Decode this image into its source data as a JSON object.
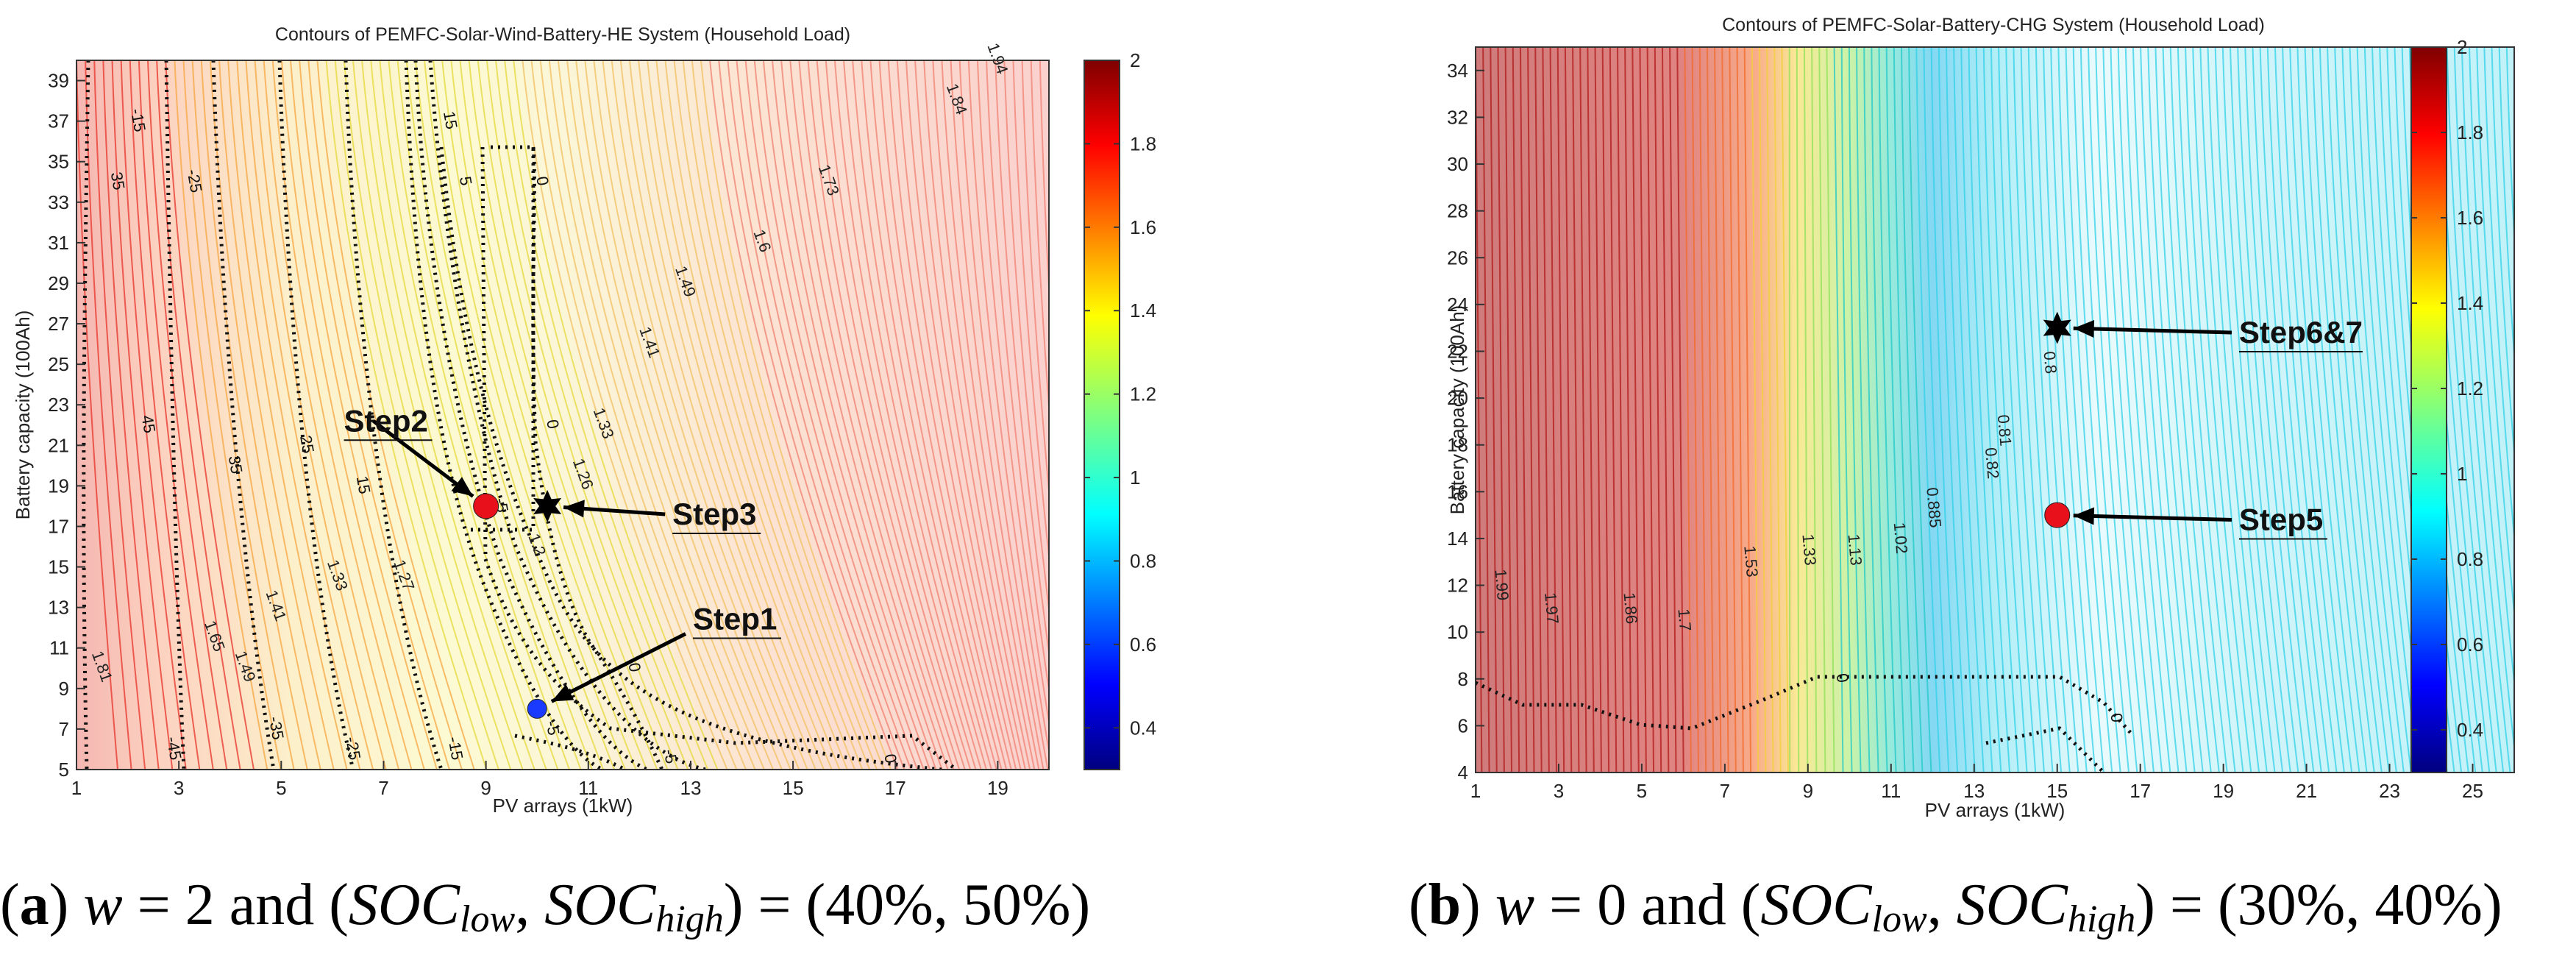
{
  "chart_data": [
    {
      "type": "contour",
      "title": "Contours of PEMFC-Solar-Wind-Battery-HE System (Household Load)",
      "xlabel": "PV arrays (1kW)",
      "ylabel": "Battery capacity (100Ah)",
      "xlim": [
        1,
        20
      ],
      "ylim": [
        5,
        40
      ],
      "xticks": [
        1,
        3,
        5,
        7,
        9,
        11,
        13,
        15,
        17,
        19
      ],
      "yticks": [
        5,
        7,
        9,
        11,
        13,
        15,
        17,
        19,
        21,
        23,
        25,
        27,
        29,
        31,
        33,
        35,
        37,
        39
      ],
      "colorbar": {
        "min": 0.3,
        "max": 2,
        "ticks": [
          0.4,
          0.6,
          0.8,
          1,
          1.2,
          1.4,
          1.6,
          1.8,
          2
        ]
      },
      "colored_contour_labels": [
        {
          "text": "1.81",
          "x": 1.4,
          "y": 10
        },
        {
          "text": "1.65",
          "x": 3.6,
          "y": 11.5
        },
        {
          "text": "1.49",
          "x": 4.2,
          "y": 10
        },
        {
          "text": "1.41",
          "x": 4.8,
          "y": 13
        },
        {
          "text": "1.33",
          "x": 6.0,
          "y": 14.5
        },
        {
          "text": "1.27",
          "x": 7.3,
          "y": 14.5
        },
        {
          "text": "1.33",
          "x": 11.2,
          "y": 22
        },
        {
          "text": "1.41",
          "x": 12.1,
          "y": 26
        },
        {
          "text": "1.49",
          "x": 12.8,
          "y": 29
        },
        {
          "text": "1.6",
          "x": 14.3,
          "y": 31
        },
        {
          "text": "1.73",
          "x": 15.6,
          "y": 34
        },
        {
          "text": "1.84",
          "x": 18.1,
          "y": 38
        },
        {
          "text": "1.94",
          "x": 18.9,
          "y": 40
        },
        {
          "text": "1.26",
          "x": 10.8,
          "y": 19.5
        },
        {
          "text": "1.2",
          "x": 9.9,
          "y": 16
        }
      ],
      "dotted_contour_labels": [
        {
          "text": "45",
          "x": 2.3,
          "y": 22
        },
        {
          "text": "35",
          "x": 4.0,
          "y": 20
        },
        {
          "text": "25",
          "x": 5.4,
          "y": 21
        },
        {
          "text": "15",
          "x": 6.5,
          "y": 19
        },
        {
          "text": "-45",
          "x": 2.8,
          "y": 6
        },
        {
          "text": "-35",
          "x": 4.8,
          "y": 7
        },
        {
          "text": "-25",
          "x": 6.3,
          "y": 6
        },
        {
          "text": "-15",
          "x": 8.3,
          "y": 6
        },
        {
          "text": "-5",
          "x": 10.2,
          "y": 7
        },
        {
          "text": "0",
          "x": 11.8,
          "y": 10
        },
        {
          "text": "-5",
          "x": 12.5,
          "y": 5.6
        },
        {
          "text": "0",
          "x": 16.8,
          "y": 5.5
        },
        {
          "text": "5",
          "x": 8.5,
          "y": 34
        },
        {
          "text": "-5",
          "x": 9.2,
          "y": 18
        },
        {
          "text": "0",
          "x": 10.0,
          "y": 34
        },
        {
          "text": "0",
          "x": 10.2,
          "y": 22
        },
        {
          "text": "-15",
          "x": 2.1,
          "y": 37
        },
        {
          "text": "-25",
          "x": 3.2,
          "y": 34
        },
        {
          "text": "35",
          "x": 1.7,
          "y": 34
        },
        {
          "text": "15",
          "x": 8.2,
          "y": 37
        }
      ],
      "markers": [
        {
          "name": "Step1",
          "x": 10,
          "y": 8,
          "marker": "circle",
          "color": "#1a3aff",
          "label_x": 12.9,
          "label_y": 11.7
        },
        {
          "name": "Step2",
          "x": 9,
          "y": 18,
          "marker": "circle",
          "color": "#e8101a",
          "label_x": 6.8,
          "label_y": 22.2
        },
        {
          "name": "Step3",
          "x": 10.2,
          "y": 18,
          "marker": "star",
          "color": "#000000",
          "label_x": 12.5,
          "label_y": 17.6
        }
      ]
    },
    {
      "type": "contour",
      "title": "Contours of PEMFC-Solar-Battery-CHG System (Household Load)",
      "xlabel": "PV arrays (1kW)",
      "ylabel": "Battery capacity (100Ah)",
      "xlim": [
        1,
        26
      ],
      "ylim": [
        4,
        35
      ],
      "xticks": [
        1,
        3,
        5,
        7,
        9,
        11,
        13,
        15,
        17,
        19,
        21,
        23,
        25
      ],
      "yticks": [
        4,
        6,
        8,
        10,
        12,
        14,
        16,
        18,
        20,
        22,
        24,
        26,
        28,
        30,
        32,
        34
      ],
      "colorbar": {
        "min": 0.3,
        "max": 2,
        "ticks": [
          0.4,
          0.6,
          0.8,
          1,
          1.2,
          1.4,
          1.6,
          1.8,
          2
        ]
      },
      "colored_contour_labels": [
        {
          "text": "1.99",
          "x": 1.5,
          "y": 12
        },
        {
          "text": "1.97",
          "x": 2.7,
          "y": 11
        },
        {
          "text": "1.86",
          "x": 4.6,
          "y": 11
        },
        {
          "text": "1.7",
          "x": 5.9,
          "y": 10.5
        },
        {
          "text": "1.53",
          "x": 7.5,
          "y": 13
        },
        {
          "text": "1.33",
          "x": 8.9,
          "y": 13.5
        },
        {
          "text": "1.13",
          "x": 10.0,
          "y": 13.5
        },
        {
          "text": "1.02",
          "x": 11.1,
          "y": 14
        },
        {
          "text": "0.885",
          "x": 11.9,
          "y": 15.3
        },
        {
          "text": "0.82",
          "x": 13.3,
          "y": 17.2
        },
        {
          "text": "0.81",
          "x": 13.6,
          "y": 18.6
        },
        {
          "text": "0.8",
          "x": 14.7,
          "y": 21.5
        }
      ],
      "dotted_contour_labels": [
        {
          "text": "0",
          "x": 9.7,
          "y": 8
        },
        {
          "text": "0",
          "x": 16.3,
          "y": 6.3
        }
      ],
      "markers": [
        {
          "name": "Step5",
          "x": 15,
          "y": 15,
          "marker": "circle",
          "color": "#e8101a",
          "label_x": 19.2,
          "label_y": 14.8
        },
        {
          "name": "Step6&7",
          "x": 15,
          "y": 23,
          "marker": "star",
          "color": "#000000",
          "label_x": 19.2,
          "label_y": 22.8
        }
      ]
    }
  ],
  "captions": [
    {
      "letter": "a",
      "w_text": "w",
      "w_value": " = 2 and (",
      "soc_low": "SOC",
      "low": "low",
      "sep": ", ",
      "soc_high": "SOC",
      "high": "high",
      "value": ") = (40%, 50%)"
    },
    {
      "letter": "b",
      "w_text": "w",
      "w_value": " = 0 and (",
      "soc_low": "SOC",
      "low": "low",
      "sep": ", ",
      "soc_high": "SOC",
      "high": "high",
      "value": ") = (30%, 40%)"
    }
  ],
  "colors": {
    "jet": [
      "#00007f",
      "#0000ff",
      "#007fff",
      "#00ffff",
      "#7fff7f",
      "#ffff00",
      "#ff7f00",
      "#ff0000",
      "#7f0000"
    ]
  }
}
